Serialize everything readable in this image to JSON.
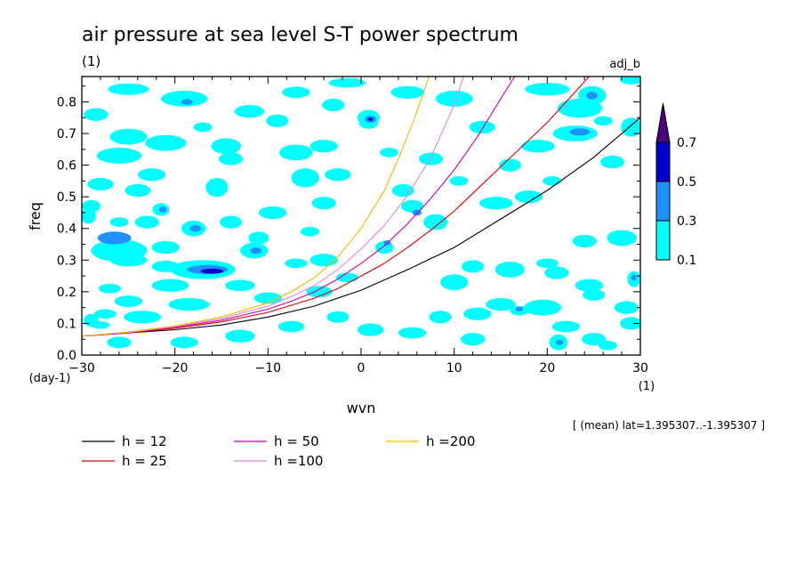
{
  "chart_data": {
    "type": "heatmap",
    "title": "air pressure at sea level S-T power spectrum",
    "title_units": "(1)",
    "subtitle_right": "adj_b",
    "xlabel": "wvn",
    "x_unit": "(1)",
    "ylabel": "freq",
    "y_unit": "(day-1)",
    "xlim": [
      -30,
      30
    ],
    "ylim": [
      0,
      0.88
    ],
    "xticks": [
      -30,
      -20,
      -10,
      0,
      10,
      20,
      30
    ],
    "yticks": [
      0.0,
      0.1,
      0.2,
      0.3,
      0.4,
      0.5,
      0.6,
      0.7,
      0.8
    ],
    "ytick_labels": [
      "0.0",
      "0.1",
      "0.2",
      "0.3",
      "0.4",
      "0.5",
      "0.6",
      "0.7",
      "0.8"
    ],
    "grid": false,
    "colorbar": {
      "levels": [
        0.1,
        0.3,
        0.5,
        0.7
      ],
      "labels": [
        "0.1",
        "0.3",
        "0.5",
        "0.7"
      ],
      "colors": [
        "#00ffff",
        "#1e90ff",
        "#0000cd",
        "#4b0082"
      ],
      "extend": "max"
    },
    "contour_patches": [
      {
        "x": -26.5,
        "y": 0.37,
        "rx": 1.8,
        "ry": 0.02,
        "level": 0.3
      },
      {
        "x": -26.0,
        "y": 0.33,
        "rx": 3.0,
        "ry": 0.035,
        "level": 0.1
      },
      {
        "x": -25.0,
        "y": 0.3,
        "rx": 2.0,
        "ry": 0.02,
        "level": 0.1
      },
      {
        "x": -21.0,
        "y": 0.34,
        "rx": 1.5,
        "ry": 0.02,
        "level": 0.1
      },
      {
        "x": -17.0,
        "y": 0.27,
        "rx": 3.5,
        "ry": 0.03,
        "level": 0.1
      },
      {
        "x": -16.5,
        "y": 0.27,
        "rx": 2.2,
        "ry": 0.014,
        "level": 0.3
      },
      {
        "x": -16.0,
        "y": 0.265,
        "rx": 1.2,
        "ry": 0.008,
        "level": 0.5
      },
      {
        "x": -18.0,
        "y": 0.4,
        "rx": 1.3,
        "ry": 0.025,
        "level": 0.1
      },
      {
        "x": -17.8,
        "y": 0.4,
        "rx": 0.6,
        "ry": 0.01,
        "level": 0.3
      },
      {
        "x": -21.5,
        "y": 0.46,
        "rx": 0.9,
        "ry": 0.02,
        "level": 0.1
      },
      {
        "x": -21.3,
        "y": 0.46,
        "rx": 0.4,
        "ry": 0.009,
        "level": 0.3
      },
      {
        "x": -11.5,
        "y": 0.33,
        "rx": 1.5,
        "ry": 0.025,
        "level": 0.1
      },
      {
        "x": -11.3,
        "y": 0.33,
        "rx": 0.6,
        "ry": 0.01,
        "level": 0.3
      },
      {
        "x": -19.0,
        "y": 0.81,
        "rx": 2.5,
        "ry": 0.025,
        "level": 0.1
      },
      {
        "x": -18.7,
        "y": 0.8,
        "rx": 0.6,
        "ry": 0.009,
        "level": 0.3
      },
      {
        "x": -25.0,
        "y": 0.84,
        "rx": 2.2,
        "ry": 0.018,
        "level": 0.1
      },
      {
        "x": -12.0,
        "y": 0.77,
        "rx": 1.6,
        "ry": 0.02,
        "level": 0.1
      },
      {
        "x": -7.0,
        "y": 0.83,
        "rx": 1.5,
        "ry": 0.018,
        "level": 0.1
      },
      {
        "x": -1.5,
        "y": 0.86,
        "rx": 2.0,
        "ry": 0.015,
        "level": 0.1
      },
      {
        "x": 0.8,
        "y": 0.75,
        "rx": 1.2,
        "ry": 0.025,
        "level": 0.1
      },
      {
        "x": 1.0,
        "y": 0.745,
        "rx": 0.6,
        "ry": 0.011,
        "level": 0.3
      },
      {
        "x": 1.0,
        "y": 0.745,
        "rx": 0.25,
        "ry": 0.005,
        "level": 0.5
      },
      {
        "x": 0.8,
        "y": 0.73,
        "rx": 1.0,
        "ry": 0.015,
        "level": 0.1
      },
      {
        "x": 5.0,
        "y": 0.83,
        "rx": 1.8,
        "ry": 0.02,
        "level": 0.1
      },
      {
        "x": 10.0,
        "y": 0.81,
        "rx": 2.0,
        "ry": 0.025,
        "level": 0.1
      },
      {
        "x": 20.0,
        "y": 0.84,
        "rx": 2.4,
        "ry": 0.02,
        "level": 0.1
      },
      {
        "x": 24.8,
        "y": 0.82,
        "rx": 1.5,
        "ry": 0.03,
        "level": 0.1
      },
      {
        "x": 24.8,
        "y": 0.82,
        "rx": 0.6,
        "ry": 0.012,
        "level": 0.3
      },
      {
        "x": 29.0,
        "y": 0.87,
        "rx": 1.2,
        "ry": 0.015,
        "level": 0.1
      },
      {
        "x": 23.5,
        "y": 0.78,
        "rx": 2.4,
        "ry": 0.03,
        "level": 0.1
      },
      {
        "x": 23.0,
        "y": 0.7,
        "rx": 2.4,
        "ry": 0.025,
        "level": 0.1
      },
      {
        "x": 23.5,
        "y": 0.705,
        "rx": 1.1,
        "ry": 0.011,
        "level": 0.3
      },
      {
        "x": 26.0,
        "y": 0.74,
        "rx": 1.0,
        "ry": 0.015,
        "level": 0.1
      },
      {
        "x": 29.0,
        "y": 0.72,
        "rx": 1.1,
        "ry": 0.03,
        "level": 0.1
      },
      {
        "x": 19.0,
        "y": 0.66,
        "rx": 1.8,
        "ry": 0.02,
        "level": 0.1
      },
      {
        "x": -25.0,
        "y": 0.69,
        "rx": 2.0,
        "ry": 0.025,
        "level": 0.1
      },
      {
        "x": -26.0,
        "y": 0.63,
        "rx": 2.4,
        "ry": 0.025,
        "level": 0.1
      },
      {
        "x": -21.0,
        "y": 0.67,
        "rx": 2.2,
        "ry": 0.025,
        "level": 0.1
      },
      {
        "x": -14.0,
        "y": 0.62,
        "rx": 1.3,
        "ry": 0.02,
        "level": 0.1
      },
      {
        "x": -14.5,
        "y": 0.66,
        "rx": 1.6,
        "ry": 0.025,
        "level": 0.1
      },
      {
        "x": -7.0,
        "y": 0.64,
        "rx": 1.8,
        "ry": 0.025,
        "level": 0.1
      },
      {
        "x": -4.0,
        "y": 0.66,
        "rx": 1.5,
        "ry": 0.02,
        "level": 0.1
      },
      {
        "x": -2.5,
        "y": 0.57,
        "rx": 1.4,
        "ry": 0.02,
        "level": 0.1
      },
      {
        "x": -6.0,
        "y": 0.56,
        "rx": 1.5,
        "ry": 0.03,
        "level": 0.1
      },
      {
        "x": -15.5,
        "y": 0.53,
        "rx": 1.2,
        "ry": 0.03,
        "level": 0.1
      },
      {
        "x": -22.5,
        "y": 0.57,
        "rx": 1.5,
        "ry": 0.02,
        "level": 0.1
      },
      {
        "x": -24.0,
        "y": 0.52,
        "rx": 1.4,
        "ry": 0.02,
        "level": 0.1
      },
      {
        "x": -28.0,
        "y": 0.54,
        "rx": 1.4,
        "ry": 0.02,
        "level": 0.1
      },
      {
        "x": -29.0,
        "y": 0.47,
        "rx": 1.0,
        "ry": 0.02,
        "level": 0.1
      },
      {
        "x": -29.3,
        "y": 0.44,
        "rx": 0.8,
        "ry": 0.025,
        "level": 0.1
      },
      {
        "x": -23.0,
        "y": 0.42,
        "rx": 1.3,
        "ry": 0.02,
        "level": 0.1
      },
      {
        "x": -26.0,
        "y": 0.42,
        "rx": 1.0,
        "ry": 0.015,
        "level": 0.1
      },
      {
        "x": -9.5,
        "y": 0.45,
        "rx": 1.5,
        "ry": 0.02,
        "level": 0.1
      },
      {
        "x": -14.0,
        "y": 0.42,
        "rx": 1.2,
        "ry": 0.02,
        "level": 0.1
      },
      {
        "x": -11.0,
        "y": 0.37,
        "rx": 1.1,
        "ry": 0.02,
        "level": 0.1
      },
      {
        "x": -5.5,
        "y": 0.39,
        "rx": 1.0,
        "ry": 0.015,
        "level": 0.1
      },
      {
        "x": -4.0,
        "y": 0.48,
        "rx": 1.3,
        "ry": 0.02,
        "level": 0.1
      },
      {
        "x": -7.0,
        "y": 0.29,
        "rx": 1.2,
        "ry": 0.015,
        "level": 0.1
      },
      {
        "x": -4.0,
        "y": 0.3,
        "rx": 1.5,
        "ry": 0.02,
        "level": 0.1
      },
      {
        "x": -20.5,
        "y": 0.22,
        "rx": 2.0,
        "ry": 0.02,
        "level": 0.1
      },
      {
        "x": -21.0,
        "y": 0.28,
        "rx": 1.5,
        "ry": 0.018,
        "level": 0.1
      },
      {
        "x": -13.0,
        "y": 0.22,
        "rx": 1.6,
        "ry": 0.018,
        "level": 0.1
      },
      {
        "x": -27.0,
        "y": 0.21,
        "rx": 1.2,
        "ry": 0.015,
        "level": 0.1
      },
      {
        "x": -25.0,
        "y": 0.17,
        "rx": 1.5,
        "ry": 0.018,
        "level": 0.1
      },
      {
        "x": -18.5,
        "y": 0.16,
        "rx": 2.2,
        "ry": 0.02,
        "level": 0.1
      },
      {
        "x": -10.0,
        "y": 0.18,
        "rx": 1.5,
        "ry": 0.018,
        "level": 0.1
      },
      {
        "x": -27.5,
        "y": 0.13,
        "rx": 1.2,
        "ry": 0.015,
        "level": 0.1
      },
      {
        "x": -23.5,
        "y": 0.12,
        "rx": 2.0,
        "ry": 0.02,
        "level": 0.1
      },
      {
        "x": -28.0,
        "y": 0.095,
        "rx": 1.0,
        "ry": 0.012,
        "level": 0.1
      },
      {
        "x": -4.5,
        "y": 0.2,
        "rx": 1.4,
        "ry": 0.018,
        "level": 0.1
      },
      {
        "x": -1.5,
        "y": 0.245,
        "rx": 1.2,
        "ry": 0.015,
        "level": 0.1
      },
      {
        "x": 2.5,
        "y": 0.34,
        "rx": 1.0,
        "ry": 0.02,
        "level": 0.1
      },
      {
        "x": 2.8,
        "y": 0.355,
        "rx": 0.4,
        "ry": 0.008,
        "level": 0.3
      },
      {
        "x": 5.5,
        "y": 0.47,
        "rx": 1.2,
        "ry": 0.02,
        "level": 0.1
      },
      {
        "x": 6.0,
        "y": 0.45,
        "rx": 0.5,
        "ry": 0.009,
        "level": 0.3
      },
      {
        "x": 4.5,
        "y": 0.52,
        "rx": 1.2,
        "ry": 0.02,
        "level": 0.1
      },
      {
        "x": 8.0,
        "y": 0.42,
        "rx": 1.3,
        "ry": 0.025,
        "level": 0.1
      },
      {
        "x": 10.0,
        "y": 0.23,
        "rx": 1.5,
        "ry": 0.025,
        "level": 0.1
      },
      {
        "x": 12.0,
        "y": 0.28,
        "rx": 1.2,
        "ry": 0.02,
        "level": 0.1
      },
      {
        "x": 16.0,
        "y": 0.27,
        "rx": 1.6,
        "ry": 0.025,
        "level": 0.1
      },
      {
        "x": 14.5,
        "y": 0.48,
        "rx": 1.8,
        "ry": 0.02,
        "level": 0.1
      },
      {
        "x": 18.0,
        "y": 0.5,
        "rx": 1.5,
        "ry": 0.02,
        "level": 0.1
      },
      {
        "x": 24.0,
        "y": 0.36,
        "rx": 1.3,
        "ry": 0.02,
        "level": 0.1
      },
      {
        "x": 28.0,
        "y": 0.37,
        "rx": 1.6,
        "ry": 0.025,
        "level": 0.1
      },
      {
        "x": 29.3,
        "y": 0.24,
        "rx": 0.7,
        "ry": 0.025,
        "level": 0.1
      },
      {
        "x": 29.3,
        "y": 0.245,
        "rx": 0.3,
        "ry": 0.009,
        "level": 0.3
      },
      {
        "x": 24.5,
        "y": 0.22,
        "rx": 1.5,
        "ry": 0.02,
        "level": 0.1
      },
      {
        "x": 21.0,
        "y": 0.26,
        "rx": 1.3,
        "ry": 0.02,
        "level": 0.1
      },
      {
        "x": 20.0,
        "y": 0.29,
        "rx": 1.2,
        "ry": 0.015,
        "level": 0.1
      },
      {
        "x": 25.0,
        "y": 0.19,
        "rx": 1.2,
        "ry": 0.018,
        "level": 0.1
      },
      {
        "x": 19.5,
        "y": 0.15,
        "rx": 2.0,
        "ry": 0.025,
        "level": 0.1
      },
      {
        "x": 17.0,
        "y": 0.14,
        "rx": 1.0,
        "ry": 0.015,
        "level": 0.1
      },
      {
        "x": 17.0,
        "y": 0.145,
        "rx": 0.4,
        "ry": 0.007,
        "level": 0.3
      },
      {
        "x": 15.0,
        "y": 0.16,
        "rx": 1.6,
        "ry": 0.02,
        "level": 0.1
      },
      {
        "x": 22.0,
        "y": 0.09,
        "rx": 1.5,
        "ry": 0.018,
        "level": 0.1
      },
      {
        "x": 21.2,
        "y": 0.04,
        "rx": 1.0,
        "ry": 0.025,
        "level": 0.1
      },
      {
        "x": 21.3,
        "y": 0.04,
        "rx": 0.4,
        "ry": 0.008,
        "level": 0.3
      },
      {
        "x": 25.0,
        "y": 0.05,
        "rx": 1.3,
        "ry": 0.02,
        "level": 0.1
      },
      {
        "x": 29.0,
        "y": 0.1,
        "rx": 1.2,
        "ry": 0.02,
        "level": 0.1
      },
      {
        "x": 28.5,
        "y": 0.15,
        "rx": 1.3,
        "ry": 0.02,
        "level": 0.1
      },
      {
        "x": 26.5,
        "y": 0.03,
        "rx": 1.0,
        "ry": 0.015,
        "level": 0.1
      },
      {
        "x": 12.0,
        "y": 0.05,
        "rx": 1.3,
        "ry": 0.02,
        "level": 0.1
      },
      {
        "x": 12.5,
        "y": 0.13,
        "rx": 1.5,
        "ry": 0.02,
        "level": 0.1
      },
      {
        "x": 8.5,
        "y": 0.12,
        "rx": 1.2,
        "ry": 0.02,
        "level": 0.1
      },
      {
        "x": 5.5,
        "y": 0.07,
        "rx": 1.5,
        "ry": 0.018,
        "level": 0.1
      },
      {
        "x": 1.0,
        "y": 0.08,
        "rx": 1.4,
        "ry": 0.02,
        "level": 0.1
      },
      {
        "x": -2.5,
        "y": 0.12,
        "rx": 1.2,
        "ry": 0.018,
        "level": 0.1
      },
      {
        "x": -7.5,
        "y": 0.09,
        "rx": 1.4,
        "ry": 0.018,
        "level": 0.1
      },
      {
        "x": -13.0,
        "y": 0.06,
        "rx": 1.6,
        "ry": 0.02,
        "level": 0.1
      },
      {
        "x": -19.0,
        "y": 0.04,
        "rx": 1.5,
        "ry": 0.018,
        "level": 0.1
      },
      {
        "x": -26.0,
        "y": 0.04,
        "rx": 1.3,
        "ry": 0.018,
        "level": 0.1
      },
      {
        "x": -29.0,
        "y": 0.11,
        "rx": 0.8,
        "ry": 0.02,
        "level": 0.1
      },
      {
        "x": 7.5,
        "y": 0.62,
        "rx": 1.3,
        "ry": 0.02,
        "level": 0.1
      },
      {
        "x": 13.0,
        "y": 0.72,
        "rx": 1.4,
        "ry": 0.02,
        "level": 0.1
      },
      {
        "x": 16.0,
        "y": 0.6,
        "rx": 1.2,
        "ry": 0.02,
        "level": 0.1
      },
      {
        "x": 27.0,
        "y": 0.61,
        "rx": 1.3,
        "ry": 0.02,
        "level": 0.1
      },
      {
        "x": 20.5,
        "y": 0.55,
        "rx": 1.0,
        "ry": 0.015,
        "level": 0.1
      },
      {
        "x": -9.0,
        "y": 0.74,
        "rx": 1.2,
        "ry": 0.02,
        "level": 0.1
      },
      {
        "x": -28.5,
        "y": 0.76,
        "rx": 1.3,
        "ry": 0.02,
        "level": 0.1
      },
      {
        "x": -17.0,
        "y": 0.72,
        "rx": 1.0,
        "ry": 0.015,
        "level": 0.1
      },
      {
        "x": -3.0,
        "y": 0.79,
        "rx": 1.2,
        "ry": 0.02,
        "level": 0.1
      },
      {
        "x": 3.0,
        "y": 0.64,
        "rx": 1.0,
        "ry": 0.015,
        "level": 0.1
      },
      {
        "x": 10.5,
        "y": 0.55,
        "rx": 1.0,
        "ry": 0.015,
        "level": 0.1
      }
    ],
    "series": [
      {
        "name": "h = 12",
        "color": "#000000",
        "x": [
          -30,
          -25,
          -20,
          -15,
          -10,
          -5,
          0,
          5,
          10,
          15,
          20,
          25,
          30
        ],
        "y": [
          0.06,
          0.07,
          0.08,
          0.095,
          0.12,
          0.155,
          0.205,
          0.27,
          0.34,
          0.43,
          0.52,
          0.625,
          0.75
        ]
      },
      {
        "name": "h = 25",
        "color": "#dd0000",
        "x": [
          -30,
          -25,
          -20,
          -15,
          -10,
          -5,
          -2.5,
          0,
          2.5,
          5,
          7.5,
          10,
          12.5,
          15,
          17.5,
          20,
          22.5,
          24.5
        ],
        "y": [
          0.06,
          0.07,
          0.085,
          0.105,
          0.135,
          0.18,
          0.21,
          0.25,
          0.29,
          0.34,
          0.395,
          0.455,
          0.525,
          0.595,
          0.665,
          0.735,
          0.815,
          0.88
        ]
      },
      {
        "name": "h = 50",
        "color": "#cc00aa",
        "x": [
          -30,
          -25,
          -20,
          -15,
          -10,
          -7.5,
          -5,
          -2.5,
          0,
          2.5,
          5,
          7.5,
          10,
          12.5,
          15,
          16.5
        ],
        "y": [
          0.06,
          0.07,
          0.088,
          0.11,
          0.145,
          0.17,
          0.2,
          0.24,
          0.29,
          0.345,
          0.415,
          0.495,
          0.585,
          0.69,
          0.81,
          0.88
        ]
      },
      {
        "name": "h =100",
        "color": "#dd88dd",
        "x": [
          -30,
          -25,
          -20,
          -15,
          -10,
          -7.5,
          -5,
          -2.5,
          0,
          2.5,
          5,
          7.5,
          10,
          11
        ],
        "y": [
          0.06,
          0.072,
          0.09,
          0.115,
          0.155,
          0.185,
          0.22,
          0.27,
          0.335,
          0.41,
          0.505,
          0.625,
          0.79,
          0.88
        ]
      },
      {
        "name": "h =200",
        "color": "#eebb00",
        "x": [
          -30,
          -25,
          -20,
          -15,
          -10,
          -7.5,
          -5,
          -2.5,
          0,
          2.5,
          4,
          5.5,
          6.5,
          7.3
        ],
        "y": [
          0.06,
          0.073,
          0.092,
          0.12,
          0.165,
          0.2,
          0.245,
          0.31,
          0.4,
          0.52,
          0.62,
          0.73,
          0.81,
          0.88
        ]
      }
    ],
    "legend_placement": "bottom",
    "annotation": "[ (mean) lat=1.395307..-1.395307 ]"
  }
}
